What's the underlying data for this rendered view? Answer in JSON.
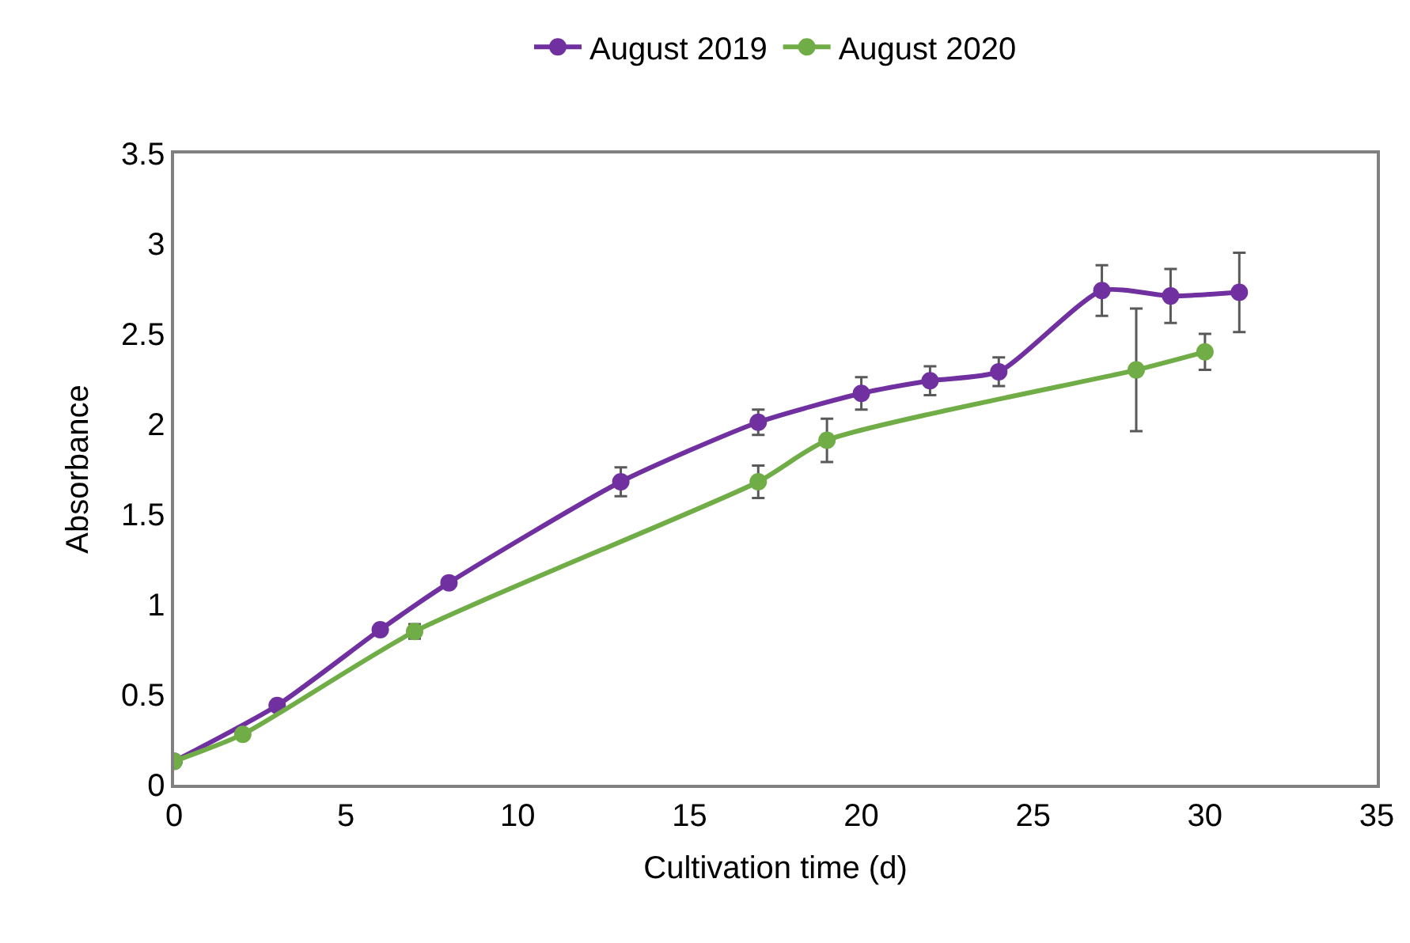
{
  "chart_data": {
    "type": "line",
    "xlabel": "Cultivation time (d)",
    "ylabel": "Absorbance",
    "xlim": [
      0,
      35
    ],
    "xticks": [
      0,
      5,
      10,
      15,
      20,
      25,
      30,
      35
    ],
    "ylim": [
      0,
      3.5
    ],
    "yticks": [
      0,
      0.5,
      1,
      1.5,
      2,
      2.5,
      3,
      3.5
    ],
    "legend": "top",
    "marker": "circle",
    "line_style": "solid",
    "series": [
      {
        "name": "August 2019",
        "color": "#7030a0",
        "x": [
          0,
          3,
          6,
          8,
          13,
          17,
          20,
          22,
          24,
          27,
          29,
          31
        ],
        "values": [
          0.13,
          0.44,
          0.86,
          1.12,
          1.68,
          2.01,
          2.17,
          2.24,
          2.29,
          2.74,
          2.71,
          2.73
        ],
        "errors": [
          null,
          null,
          null,
          null,
          0.08,
          0.07,
          0.09,
          0.08,
          0.08,
          0.14,
          0.15,
          0.22
        ]
      },
      {
        "name": "August 2020",
        "color": "#70ad47",
        "x": [
          0,
          2,
          7,
          17,
          19,
          28,
          30
        ],
        "values": [
          0.13,
          0.28,
          0.85,
          1.68,
          1.91,
          2.3,
          2.4
        ],
        "errors": [
          null,
          null,
          0.04,
          0.09,
          0.12,
          0.34,
          0.1
        ]
      }
    ]
  }
}
